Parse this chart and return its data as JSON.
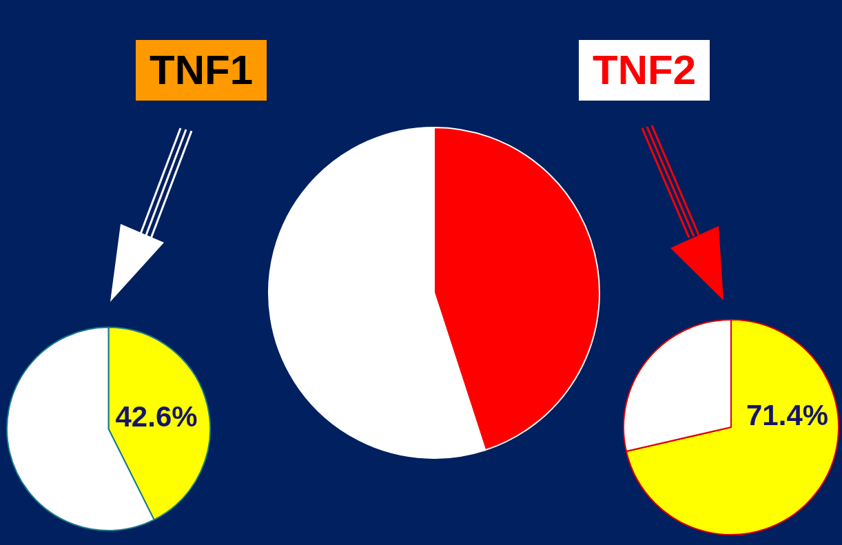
{
  "chart_data": [
    {
      "type": "pie",
      "title": "TNF1",
      "categories": [
        null,
        null
      ],
      "values": [
        42.6,
        57.4
      ],
      "colors": [
        "#ffff00",
        "#ffffff"
      ],
      "value_labels": [
        "42.6%",
        null
      ]
    },
    {
      "type": "pie",
      "categories": [
        null,
        null
      ],
      "values": [
        45,
        55
      ],
      "colors": [
        "#ff0000",
        "#ffffff"
      ]
    },
    {
      "type": "pie",
      "title": "TNF2",
      "categories": [
        null,
        null
      ],
      "values": [
        71.4,
        28.6
      ],
      "colors": [
        "#ffff00",
        "#ffffff"
      ],
      "value_labels": [
        "71.4%",
        null
      ]
    }
  ]
}
